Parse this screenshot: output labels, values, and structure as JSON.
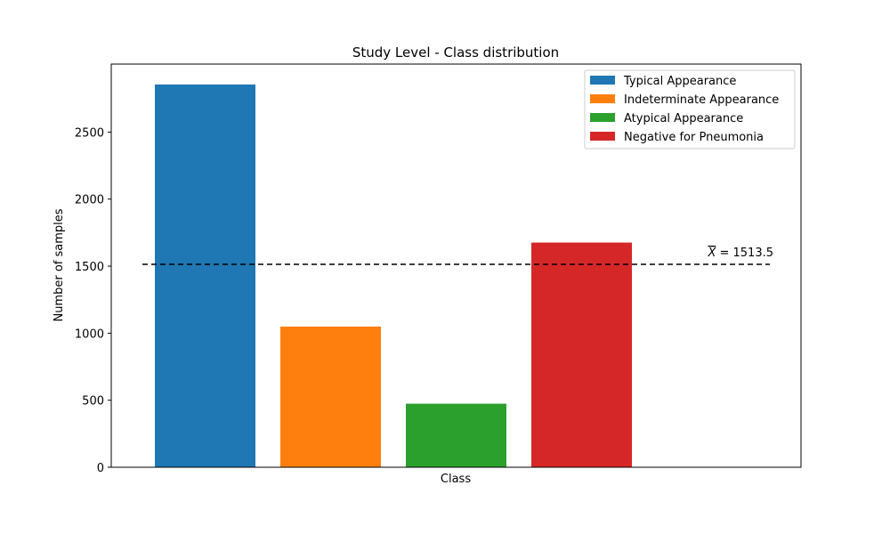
{
  "chart_data": {
    "type": "bar",
    "title": "Study Level - Class distribution",
    "xlabel": "Class",
    "ylabel": "Number of samples",
    "ylim": [
      0,
      3000
    ],
    "yticks": [
      0,
      500,
      1000,
      1500,
      2000,
      2500
    ],
    "grid": false,
    "legend_position": "top-right",
    "series": [
      {
        "name": "Typical Appearance",
        "value": 2855,
        "color": "#1f77b4"
      },
      {
        "name": "Indeterminate Appearance",
        "value": 1049,
        "color": "#ff7f0e"
      },
      {
        "name": "Atypical Appearance",
        "value": 474,
        "color": "#2ca02c"
      },
      {
        "name": "Negative for Pneumonia",
        "value": 1676,
        "color": "#d62728"
      }
    ],
    "mean_line": {
      "value": 1513.5,
      "label_symbol": "X",
      "label_text": " = 1513.5",
      "style": "dashed",
      "color": "#000000"
    }
  }
}
